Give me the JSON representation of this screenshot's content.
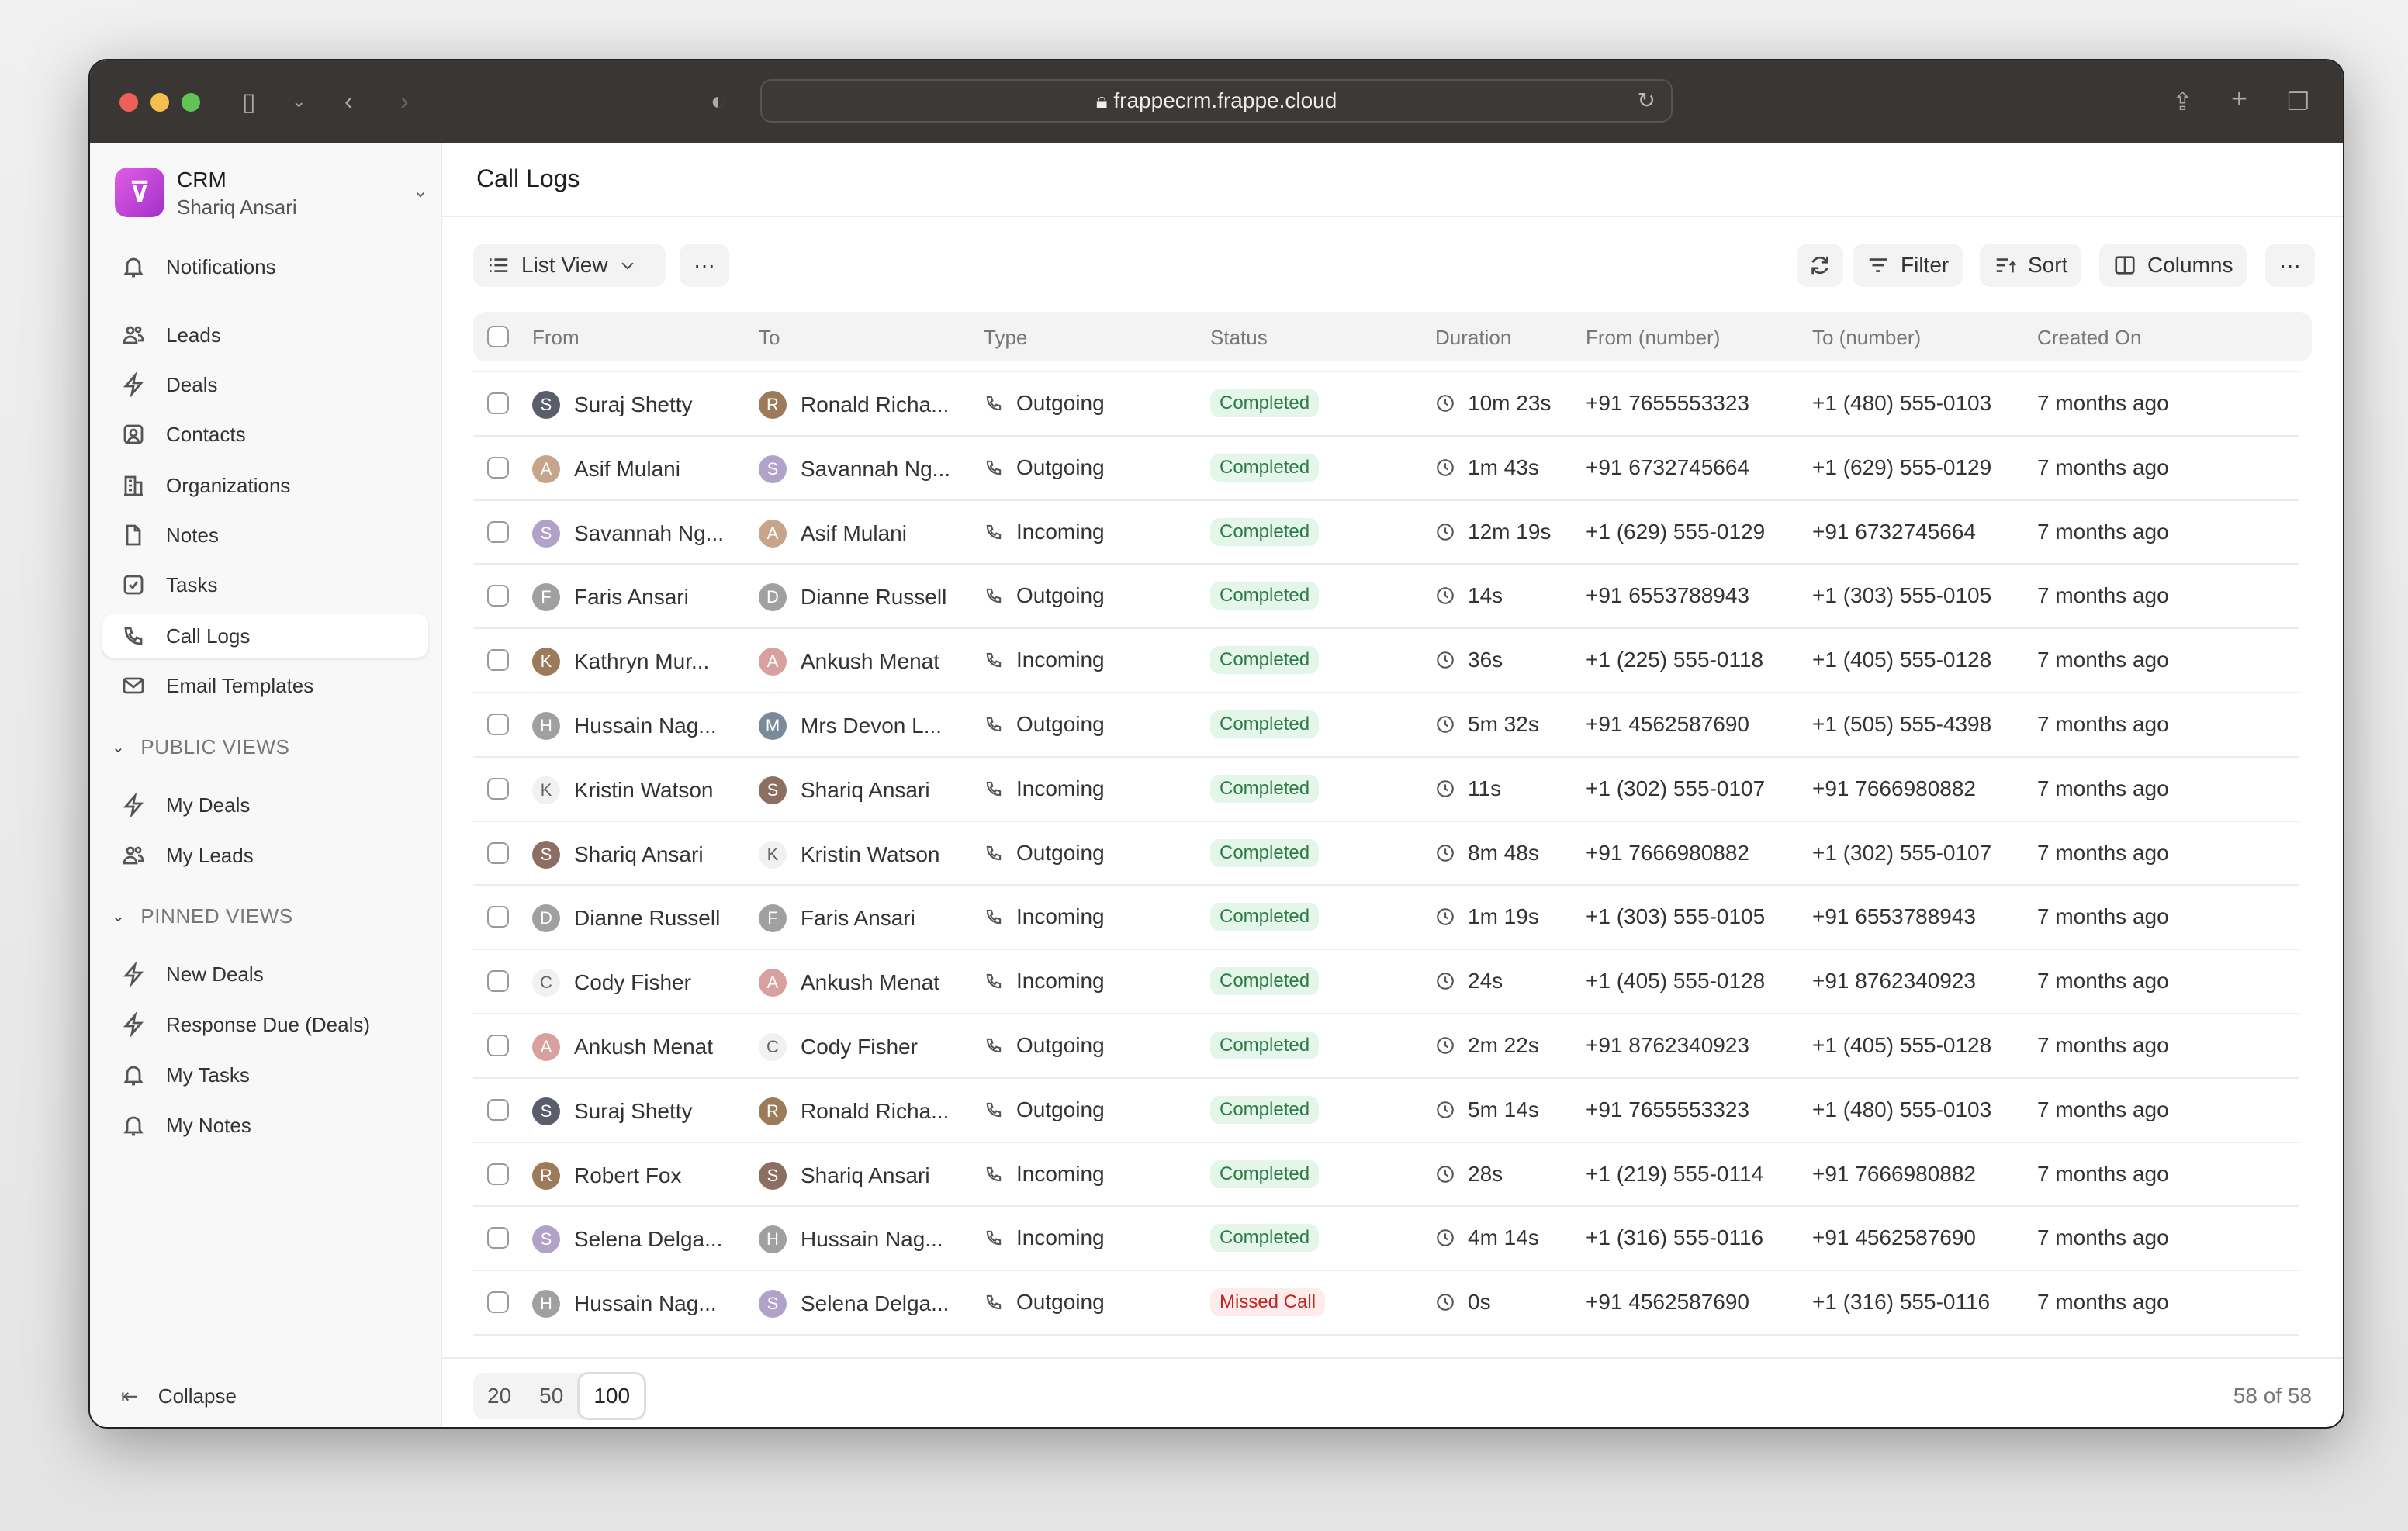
{
  "browser": {
    "url": "frappecrm.frappe.cloud"
  },
  "brand": {
    "app": "CRM",
    "user": "Shariq Ansari"
  },
  "sidebar": {
    "items": [
      {
        "label": "Notifications",
        "icon": "bell"
      },
      {
        "label": "Leads",
        "icon": "users"
      },
      {
        "label": "Deals",
        "icon": "bolt"
      },
      {
        "label": "Contacts",
        "icon": "contact"
      },
      {
        "label": "Organizations",
        "icon": "building"
      },
      {
        "label": "Notes",
        "icon": "file"
      },
      {
        "label": "Tasks",
        "icon": "check"
      },
      {
        "label": "Call Logs",
        "icon": "phone",
        "active": true
      },
      {
        "label": "Email Templates",
        "icon": "mail"
      }
    ],
    "public_views_label": "PUBLIC VIEWS",
    "public_views": [
      {
        "label": "My Deals",
        "icon": "bolt"
      },
      {
        "label": "My Leads",
        "icon": "users"
      }
    ],
    "pinned_views_label": "PINNED VIEWS",
    "pinned_views": [
      {
        "label": "New Deals",
        "icon": "bolt"
      },
      {
        "label": "Response Due (Deals)",
        "icon": "bolt"
      },
      {
        "label": "My Tasks",
        "icon": "bell"
      },
      {
        "label": "My Notes",
        "icon": "bell"
      }
    ],
    "collapse_label": "Collapse"
  },
  "page": {
    "title": "Call Logs"
  },
  "toolbar": {
    "view_label": "List View",
    "filter": "Filter",
    "sort": "Sort",
    "columns": "Columns"
  },
  "table": {
    "columns": [
      "From",
      "To",
      "Type",
      "Status",
      "Duration",
      "From (number)",
      "To (number)",
      "Created On"
    ],
    "rows": [
      [
        "Suraj Shetty",
        "Ronald Richa...",
        "Outgoing",
        "Completed",
        "10m 23s",
        "+91 7655553323",
        "+1 (480) 555-0103",
        "7 months ago"
      ],
      [
        "Asif Mulani",
        "Savannah Ng...",
        "Outgoing",
        "Completed",
        "1m 43s",
        "+91 6732745664",
        "+1 (629) 555-0129",
        "7 months ago"
      ],
      [
        "Savannah Ng...",
        "Asif Mulani",
        "Incoming",
        "Completed",
        "12m 19s",
        "+1 (629) 555-0129",
        "+91 6732745664",
        "7 months ago"
      ],
      [
        "Faris Ansari",
        "Dianne Russell",
        "Outgoing",
        "Completed",
        "14s",
        "+91 6553788943",
        "+1 (303) 555-0105",
        "7 months ago"
      ],
      [
        "Kathryn Mur...",
        "Ankush Menat",
        "Incoming",
        "Completed",
        "36s",
        "+1 (225) 555-0118",
        "+1 (405) 555-0128",
        "7 months ago"
      ],
      [
        "Hussain Nag...",
        "Mrs Devon L...",
        "Outgoing",
        "Completed",
        "5m 32s",
        "+91 4562587690",
        "+1 (505) 555-4398",
        "7 months ago"
      ],
      [
        "Kristin Watson",
        "Shariq Ansari",
        "Incoming",
        "Completed",
        "11s",
        "+1 (302) 555-0107",
        "+91 7666980882",
        "7 months ago"
      ],
      [
        "Shariq Ansari",
        "Kristin Watson",
        "Outgoing",
        "Completed",
        "8m 48s",
        "+91 7666980882",
        "+1 (302) 555-0107",
        "7 months ago"
      ],
      [
        "Dianne Russell",
        "Faris Ansari",
        "Incoming",
        "Completed",
        "1m 19s",
        "+1 (303) 555-0105",
        "+91 6553788943",
        "7 months ago"
      ],
      [
        "Cody Fisher",
        "Ankush Menat",
        "Incoming",
        "Completed",
        "24s",
        "+1 (405) 555-0128",
        "+91 8762340923",
        "7 months ago"
      ],
      [
        "Ankush Menat",
        "Cody Fisher",
        "Outgoing",
        "Completed",
        "2m 22s",
        "+91 8762340923",
        "+1 (405) 555-0128",
        "7 months ago"
      ],
      [
        "Suraj Shetty",
        "Ronald Richa...",
        "Outgoing",
        "Completed",
        "5m 14s",
        "+91 7655553323",
        "+1 (480) 555-0103",
        "7 months ago"
      ],
      [
        "Robert Fox",
        "Shariq Ansari",
        "Incoming",
        "Completed",
        "28s",
        "+1 (219) 555-0114",
        "+91 7666980882",
        "7 months ago"
      ],
      [
        "Selena Delga...",
        "Hussain Nag...",
        "Incoming",
        "Completed",
        "4m 14s",
        "+1 (316) 555-0116",
        "+91 4562587690",
        "7 months ago"
      ],
      [
        "Hussain Nag...",
        "Selena Delga...",
        "Outgoing",
        "Missed Call",
        "0s",
        "+91 4562587690",
        "+1 (316) 555-0116",
        "7 months ago"
      ]
    ],
    "letter_avatars": [
      "Kristin Watson",
      "Cody Fisher"
    ]
  },
  "colors": {
    "completed_bg": "#e4f5e9",
    "completed_text": "#2d7a46",
    "missed_bg": "#fdeceb",
    "missed_text": "#c0251f",
    "brand": "#c044d8"
  },
  "pagination": {
    "sizes": [
      "20",
      "50",
      "100"
    ],
    "selected": "100",
    "count": "58 of 58"
  }
}
